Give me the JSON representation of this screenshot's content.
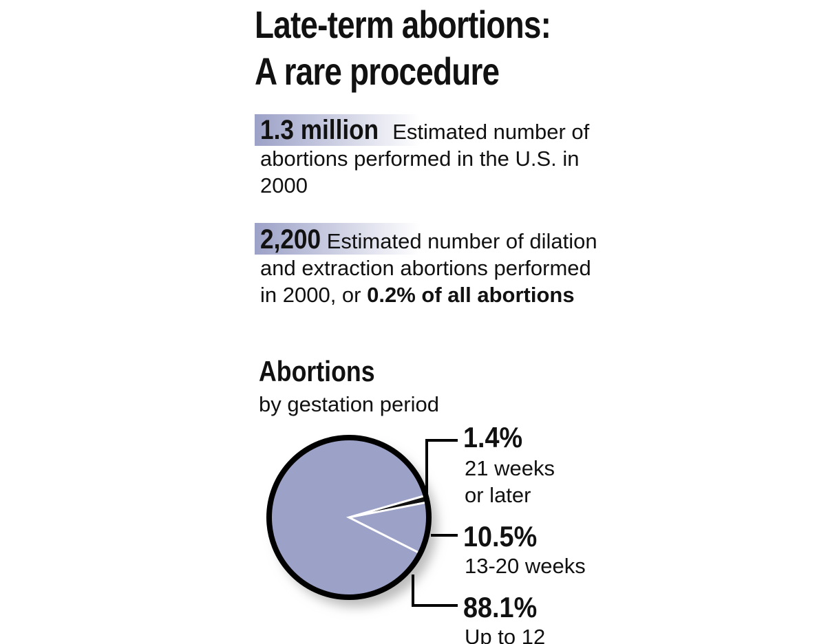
{
  "header": {
    "title_lines": [
      "Late-term abortions:",
      "A rare procedure"
    ]
  },
  "facts": [
    {
      "figure": "1.3 million",
      "text": "Estimated number of abortions performed in the U.S. in 2000"
    },
    {
      "figure": "2,200",
      "text": "Estimated number of dilation and extraction abortions performed in 2000, or ",
      "bold_text": "0.2% of all abortions"
    }
  ],
  "chart_data": {
    "type": "pie",
    "title": "Abortions",
    "subtitle": "by gestation period",
    "categories": [
      "21 weeks or later",
      "13-20 weeks",
      "Up to 12"
    ],
    "values": [
      1.4,
      10.5,
      88.1
    ],
    "value_labels": [
      "1.4%",
      "10.5%",
      "88.1%"
    ],
    "colors": [
      "#111111",
      "#9ca1c7",
      "#9ca1c7"
    ]
  }
}
